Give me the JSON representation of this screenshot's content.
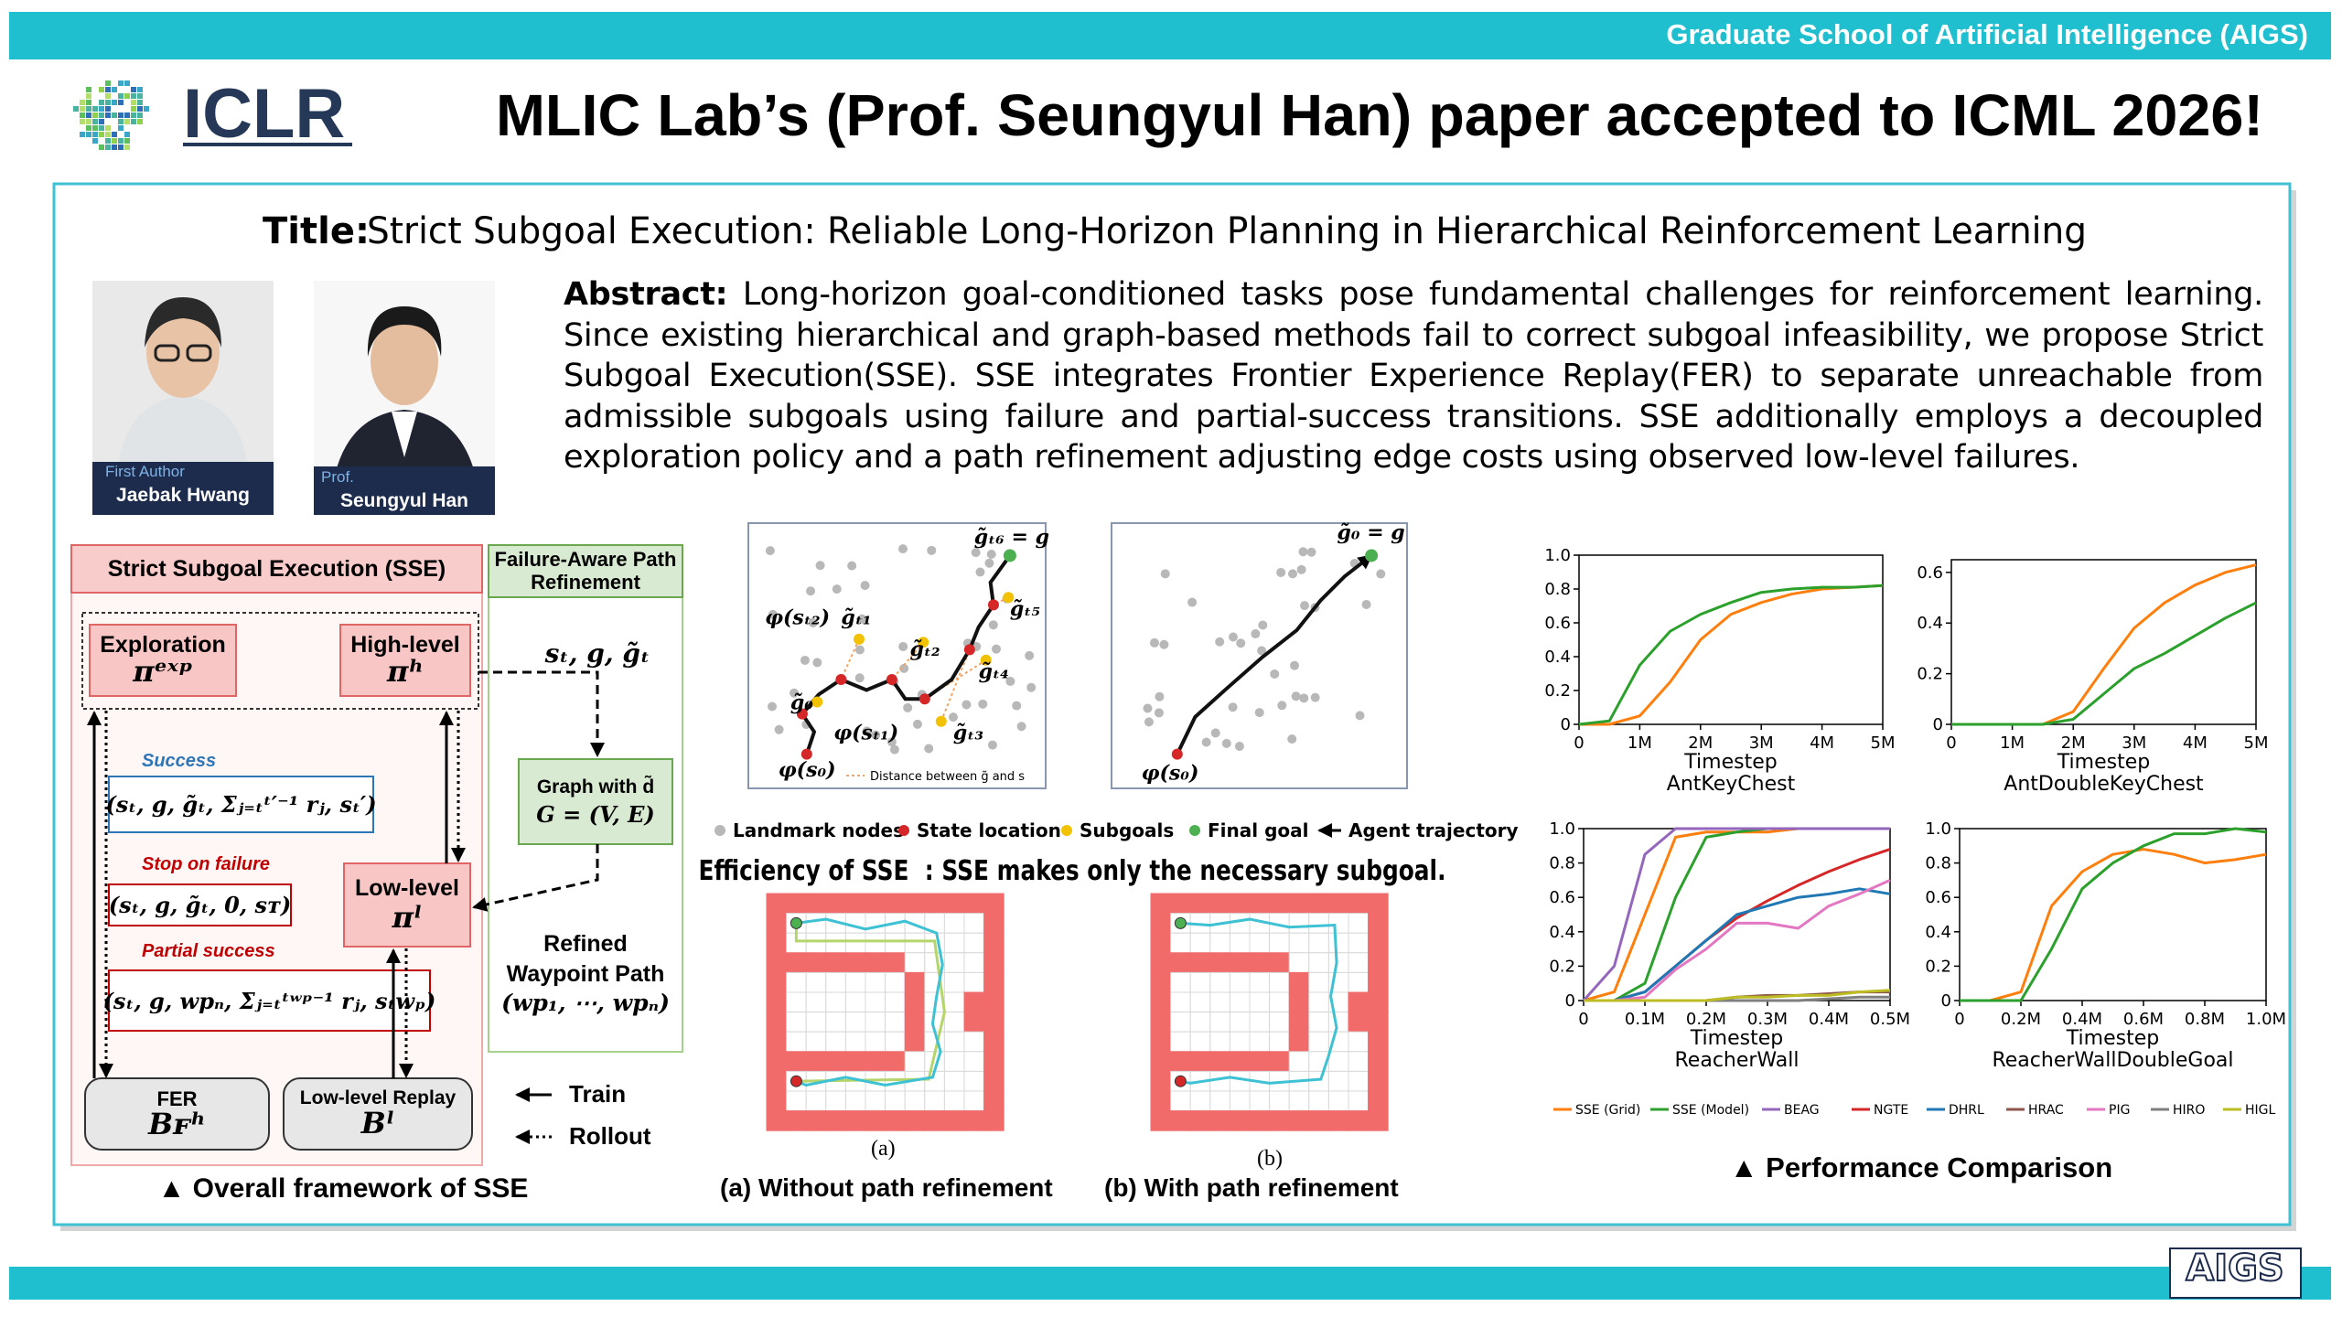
{
  "header": {
    "banner": "Graduate School of Artificial Intelligence (AIGS)",
    "logo": "ICLR",
    "headline": "MLIC Lab’s (Prof. Seungyul Han) paper accepted to ICML 2026!"
  },
  "paper": {
    "title_label": "Title:",
    "title": "Strict Subgoal Execution: Reliable Long-Horizon Planning in Hierarchical Reinforcement Learning",
    "abstract_label": "Abstract:",
    "abstract": "Long-horizon goal-conditioned tasks pose fundamental challenges for reinforcement learning. Since existing hierarchical and graph-based methods fail to correct subgoal infeasibility, we propose Strict Subgoal Execution(SSE). SSE integrates Frontier Experience Replay(FER) to separate unreachable from admissible subgoals using failure and partial-success transitions. SSE additionally employs a decoupled exploration policy and a path refinement adjusting edge costs using observed low-level failures."
  },
  "authors": [
    {
      "role": "First Author",
      "name": "Jaebak Hwang"
    },
    {
      "role": "Prof.",
      "name": "Seungyul Han"
    }
  ],
  "framework": {
    "sse_title": "Strict Subgoal Execution (SSE)",
    "refine_title": "Failure-Aware Path Refinement",
    "exploration": {
      "label": "Exploration",
      "symbol": "πᵉˣᵖ"
    },
    "high_level": {
      "label": "High-level",
      "symbol": "πʰ"
    },
    "success": {
      "label": "Success",
      "tuple": "(sₜ, g, g̃ₜ, Σⱼ₌ₜᵗ′⁻¹ rⱼ, sₜ′)"
    },
    "stop": {
      "label": "Stop on failure",
      "tuple": "(sₜ, g, g̃ₜ, 0, sᴛ)"
    },
    "partial": {
      "label": "Partial success",
      "tuple": "(sₜ, g, wpₙ, Σⱼ₌ₜᵗʷᵖ⁻¹ rⱼ, sₜwₚ)"
    },
    "low_level": {
      "label": "Low-level",
      "symbol": "πˡ"
    },
    "fer": {
      "label": "FER",
      "symbol": "Bꜰʰ"
    },
    "replay": {
      "label": "Low-level Replay",
      "symbol": "Bˡ"
    },
    "inputs": "sₜ, g, g̃ₜ",
    "graph": {
      "label": "Graph with d̃",
      "formula": "G = (V, E)"
    },
    "refined": {
      "line1": "Refined",
      "line2": "Waypoint Path",
      "formula": "(wp₁, ⋯, wpₙ)"
    },
    "legend": {
      "train": "Train",
      "rollout": "Rollout"
    },
    "caption": "▲ Overall framework of SSE"
  },
  "efficiency": {
    "diagram1": [
      "g̃ₜ₆ = g",
      "φ(sₜ₂)",
      "g̃ₜ₁",
      "g̃ₜ₂",
      "g̃ₜ₅",
      "g̃ₜ₄",
      "g̃₀",
      "φ(sₜ₁)",
      "g̃ₜ₃",
      "φ(s₀)"
    ],
    "distance_note": "Distance between g̃ and s",
    "diagram2": [
      "g̃₀ = g",
      "φ(s₀)"
    ],
    "legend": [
      "Landmark nodes",
      "State location",
      "Subgoals",
      "Final goal",
      "Agent trajectory"
    ],
    "headline": "Efficiency of SSE  : SSE makes only the necessary subgoal.",
    "maze_a": "(a)",
    "maze_b": "(b)",
    "caption_a": "(a) Without path refinement",
    "caption_b": "(b) With path refinement"
  },
  "chart_data": [
    {
      "type": "line",
      "title": "AntKeyChest",
      "xlabel": "Timestep",
      "x": [
        0,
        500000,
        1000000,
        1500000,
        2000000,
        2500000,
        3000000,
        3500000,
        4000000,
        4500000,
        5000000
      ],
      "xlim": [
        0,
        5000000
      ],
      "ylim": [
        0,
        1
      ],
      "xticks": [
        0,
        {
          "value": 1000000,
          "label": "1M"
        },
        {
          "value": 2000000,
          "label": "2M"
        },
        {
          "value": 3000000,
          "label": "3M"
        },
        {
          "value": 4000000,
          "label": "4M"
        },
        {
          "value": 5000000,
          "label": "5M"
        }
      ],
      "yticks": [
        0,
        0.2,
        0.4,
        0.6,
        0.8,
        {
          "value": 1,
          "label": "1.0"
        }
      ],
      "series": [
        {
          "name": "SSE (Grid)",
          "color": "#ff7f0e",
          "values": [
            0,
            0,
            0.05,
            0.25,
            0.5,
            0.65,
            0.72,
            0.77,
            0.8,
            0.81,
            0.82
          ]
        },
        {
          "name": "SSE (Model)",
          "color": "#2ca02c",
          "values": [
            0,
            0.02,
            0.35,
            0.55,
            0.65,
            0.72,
            0.78,
            0.8,
            0.81,
            0.81,
            0.82
          ]
        }
      ]
    },
    {
      "type": "line",
      "title": "AntDoubleKeyChest",
      "xlabel": "Timestep",
      "x": [
        0,
        500000,
        1000000,
        1500000,
        2000000,
        2500000,
        3000000,
        3500000,
        4000000,
        4500000,
        5000000
      ],
      "xlim": [
        0,
        5000000
      ],
      "ylim": [
        0,
        0.65
      ],
      "xticks": [
        0,
        {
          "value": 1000000,
          "label": "1M"
        },
        {
          "value": 2000000,
          "label": "2M"
        },
        {
          "value": 3000000,
          "label": "3M"
        },
        {
          "value": 4000000,
          "label": "4M"
        },
        {
          "value": 5000000,
          "label": "5M"
        }
      ],
      "yticks": [
        0,
        0.2,
        0.4,
        0.6
      ],
      "series": [
        {
          "name": "SSE (Grid)",
          "color": "#ff7f0e",
          "values": [
            0,
            0,
            0,
            0,
            0.05,
            0.22,
            0.38,
            0.48,
            0.55,
            0.6,
            0.63
          ]
        },
        {
          "name": "SSE (Model)",
          "color": "#2ca02c",
          "values": [
            0,
            0,
            0,
            0,
            0.02,
            0.12,
            0.22,
            0.28,
            0.35,
            0.42,
            0.48
          ]
        }
      ]
    },
    {
      "type": "line",
      "title": "ReacherWall",
      "xlabel": "Timestep",
      "x": [
        0,
        50000,
        100000,
        150000,
        200000,
        250000,
        300000,
        350000,
        400000,
        450000,
        500000
      ],
      "xlim": [
        0,
        500000
      ],
      "ylim": [
        0,
        1
      ],
      "xticks": [
        0,
        {
          "value": 100000,
          "label": "0.1M"
        },
        {
          "value": 200000,
          "label": "0.2M"
        },
        {
          "value": 300000,
          "label": "0.3M"
        },
        {
          "value": 400000,
          "label": "0.4M"
        },
        {
          "value": 500000,
          "label": "0.5M"
        }
      ],
      "yticks": [
        0,
        0.2,
        0.4,
        0.6,
        0.8,
        {
          "value": 1,
          "label": "1.0"
        }
      ],
      "series": [
        {
          "name": "SSE (Grid)",
          "color": "#ff7f0e",
          "values": [
            0,
            0.05,
            0.5,
            0.95,
            0.98,
            0.98,
            0.98,
            1,
            1,
            1,
            1
          ]
        },
        {
          "name": "SSE (Model)",
          "color": "#2ca02c",
          "values": [
            0,
            0,
            0.1,
            0.6,
            0.95,
            0.98,
            1,
            1,
            1,
            1,
            1
          ]
        },
        {
          "name": "BEAG",
          "color": "#9467bd",
          "values": [
            0,
            0.2,
            0.85,
            1,
            1,
            1,
            1,
            1,
            1,
            1,
            1
          ]
        },
        {
          "name": "NGTE",
          "color": "#d62728",
          "values": [
            0,
            0,
            0.05,
            0.2,
            0.35,
            0.48,
            0.58,
            0.67,
            0.75,
            0.82,
            0.88
          ]
        },
        {
          "name": "DHRL",
          "color": "#1f77b4",
          "values": [
            0,
            0,
            0.05,
            0.2,
            0.35,
            0.5,
            0.55,
            0.6,
            0.62,
            0.65,
            0.62
          ]
        },
        {
          "name": "HRAC",
          "color": "#8c564b",
          "values": [
            0,
            0,
            0,
            0,
            0,
            0.02,
            0.03,
            0.03,
            0.04,
            0.05,
            0.05
          ]
        },
        {
          "name": "PIG",
          "color": "#e377c2",
          "values": [
            0,
            0,
            0.02,
            0.18,
            0.3,
            0.45,
            0.45,
            0.42,
            0.55,
            0.62,
            0.7
          ]
        },
        {
          "name": "HIRO",
          "color": "#7f7f7f",
          "values": [
            0,
            0,
            0,
            0,
            0,
            0,
            0,
            0,
            0.01,
            0.02,
            0.02
          ]
        },
        {
          "name": "HIGL",
          "color": "#bcbd22",
          "values": [
            0,
            0,
            0,
            0,
            0,
            0.02,
            0.02,
            0.03,
            0.03,
            0.05,
            0.06
          ]
        }
      ]
    },
    {
      "type": "line",
      "title": "ReacherWallDoubleGoal",
      "xlabel": "Timestep",
      "x": [
        0,
        100000,
        200000,
        300000,
        400000,
        500000,
        600000,
        700000,
        800000,
        900000,
        1000000
      ],
      "xlim": [
        0,
        1000000
      ],
      "ylim": [
        0,
        1
      ],
      "xticks": [
        0,
        {
          "value": 200000,
          "label": "0.2M"
        },
        {
          "value": 400000,
          "label": "0.4M"
        },
        {
          "value": 600000,
          "label": "0.6M"
        },
        {
          "value": 800000,
          "label": "0.8M"
        },
        {
          "value": 1000000,
          "label": "1.0M"
        }
      ],
      "yticks": [
        0,
        0.2,
        0.4,
        0.6,
        0.8,
        {
          "value": 1,
          "label": "1.0"
        }
      ],
      "series": [
        {
          "name": "SSE (Grid)",
          "color": "#ff7f0e",
          "values": [
            0,
            0,
            0.05,
            0.55,
            0.75,
            0.85,
            0.88,
            0.85,
            0.8,
            0.82,
            0.85
          ]
        },
        {
          "name": "SSE (Model)",
          "color": "#2ca02c",
          "values": [
            0,
            0,
            0,
            0.3,
            0.65,
            0.8,
            0.9,
            0.97,
            0.97,
            1,
            0.98
          ]
        }
      ]
    }
  ],
  "performance": {
    "caption": "▲ Performance Comparison"
  },
  "footer": {
    "logo": "AIGS"
  }
}
